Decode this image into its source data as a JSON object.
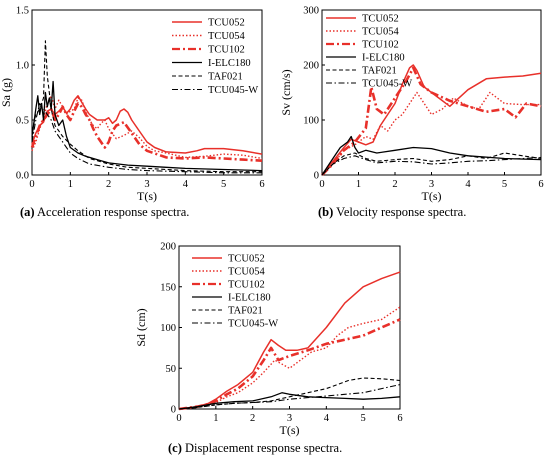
{
  "series_styles": [
    {
      "name": "TCU052",
      "color": "#e8302a",
      "dash": "",
      "width": 1.5
    },
    {
      "name": "TCU054",
      "color": "#e8302a",
      "dash": "1.5,2",
      "width": 1.4
    },
    {
      "name": "TCU102",
      "color": "#e8302a",
      "dash": "8,3,2,3",
      "width": 2.6
    },
    {
      "name": "I-ELC180",
      "color": "#000000",
      "dash": "",
      "width": 1.3
    },
    {
      "name": "TAF021",
      "color": "#000000",
      "dash": "4,2.5",
      "width": 1.1
    },
    {
      "name": "TCU045-W",
      "color": "#000000",
      "dash": "6,2.5,1.5,2.5",
      "width": 1.1
    }
  ],
  "chart_data": [
    {
      "type": "line",
      "ylabel": "Sa (g)",
      "xlabel": "T(s)",
      "xlim": [
        0,
        6
      ],
      "ylim": [
        0,
        1.5
      ],
      "xticks": [
        "0",
        "1",
        "2",
        "3",
        "4",
        "5",
        "6"
      ],
      "yticks": [
        "0.0",
        "0.5",
        "1.0",
        "1.5"
      ],
      "ytick_values": [
        0,
        0.5,
        1.0,
        1.5
      ],
      "caption_label": "(a)",
      "caption_text": " Acceleration response spectra.",
      "series": [
        {
          "name": "TCU052",
          "x": [
            0,
            0.1,
            0.2,
            0.3,
            0.4,
            0.5,
            0.6,
            0.7,
            0.8,
            0.9,
            1.0,
            1.1,
            1.2,
            1.3,
            1.4,
            1.5,
            1.7,
            1.9,
            2.0,
            2.1,
            2.2,
            2.3,
            2.4,
            2.5,
            2.6,
            2.7,
            2.8,
            3.0,
            3.2,
            3.5,
            4.0,
            4.3,
            4.5,
            5.0,
            5.5,
            6.0
          ],
          "y": [
            0.28,
            0.38,
            0.45,
            0.48,
            0.58,
            0.6,
            0.55,
            0.58,
            0.62,
            0.56,
            0.6,
            0.68,
            0.72,
            0.66,
            0.6,
            0.55,
            0.5,
            0.5,
            0.52,
            0.47,
            0.5,
            0.58,
            0.6,
            0.57,
            0.5,
            0.45,
            0.4,
            0.3,
            0.25,
            0.21,
            0.2,
            0.22,
            0.24,
            0.24,
            0.22,
            0.19
          ]
        },
        {
          "name": "TCU054",
          "x": [
            0,
            0.1,
            0.2,
            0.3,
            0.4,
            0.5,
            0.6,
            0.7,
            0.8,
            0.9,
            1.0,
            1.1,
            1.2,
            1.3,
            1.4,
            1.5,
            1.6,
            1.7,
            1.8,
            1.9,
            2.0,
            2.2,
            2.4,
            2.6,
            2.8,
            3.0,
            3.2,
            3.5,
            4.0,
            4.5,
            5.0,
            5.5,
            6.0
          ],
          "y": [
            0.22,
            0.3,
            0.42,
            0.52,
            0.65,
            0.72,
            0.6,
            0.68,
            0.62,
            0.55,
            0.58,
            0.6,
            0.7,
            0.68,
            0.58,
            0.5,
            0.45,
            0.42,
            0.47,
            0.5,
            0.42,
            0.33,
            0.36,
            0.4,
            0.34,
            0.26,
            0.22,
            0.2,
            0.16,
            0.17,
            0.19,
            0.18,
            0.15
          ]
        },
        {
          "name": "TCU102",
          "x": [
            0,
            0.1,
            0.2,
            0.3,
            0.4,
            0.5,
            0.6,
            0.7,
            0.8,
            0.9,
            1.0,
            1.1,
            1.2,
            1.3,
            1.4,
            1.5,
            1.6,
            1.7,
            1.8,
            1.9,
            2.0,
            2.1,
            2.2,
            2.4,
            2.6,
            2.8,
            3.0,
            3.5,
            4.0,
            4.5,
            5.0,
            5.5,
            6.0
          ],
          "y": [
            0.25,
            0.35,
            0.45,
            0.5,
            0.55,
            0.6,
            0.5,
            0.55,
            0.62,
            0.55,
            0.5,
            0.58,
            0.65,
            0.62,
            0.55,
            0.5,
            0.42,
            0.35,
            0.3,
            0.25,
            0.3,
            0.4,
            0.45,
            0.48,
            0.38,
            0.28,
            0.22,
            0.16,
            0.15,
            0.16,
            0.15,
            0.14,
            0.13
          ]
        },
        {
          "name": "I-ELC180",
          "x": [
            0,
            0.1,
            0.15,
            0.2,
            0.25,
            0.3,
            0.35,
            0.4,
            0.45,
            0.5,
            0.55,
            0.6,
            0.7,
            0.8,
            0.9,
            1.0,
            1.2,
            1.4,
            1.6,
            1.8,
            2.0,
            2.5,
            3.0,
            3.5,
            4.0,
            5.0,
            6.0
          ],
          "y": [
            0.35,
            0.6,
            0.72,
            0.55,
            0.65,
            0.5,
            0.75,
            0.62,
            0.7,
            0.6,
            0.85,
            0.55,
            0.45,
            0.5,
            0.35,
            0.25,
            0.2,
            0.17,
            0.15,
            0.13,
            0.11,
            0.09,
            0.08,
            0.07,
            0.06,
            0.05,
            0.04
          ]
        },
        {
          "name": "TAF021",
          "x": [
            0,
            0.1,
            0.2,
            0.3,
            0.35,
            0.4,
            0.45,
            0.5,
            0.6,
            0.8,
            1.0,
            1.2,
            1.5,
            2.0,
            2.5,
            3.0,
            4.0,
            5.0,
            6.0
          ],
          "y": [
            0.4,
            0.55,
            0.6,
            0.7,
            1.22,
            0.9,
            0.75,
            0.6,
            0.45,
            0.35,
            0.28,
            0.22,
            0.15,
            0.1,
            0.07,
            0.06,
            0.04,
            0.03,
            0.03
          ]
        },
        {
          "name": "TCU045-W",
          "x": [
            0,
            0.1,
            0.2,
            0.3,
            0.4,
            0.5,
            0.6,
            0.8,
            1.0,
            1.2,
            1.5,
            2.0,
            2.5,
            3.0,
            4.0,
            5.0,
            6.0
          ],
          "y": [
            0.3,
            0.5,
            0.65,
            0.6,
            0.55,
            0.5,
            0.4,
            0.3,
            0.2,
            0.15,
            0.1,
            0.07,
            0.05,
            0.04,
            0.03,
            0.02,
            0.02
          ]
        }
      ]
    },
    {
      "type": "line",
      "ylabel": "Sv (cm/s)",
      "xlabel": "T(s)",
      "xlim": [
        0,
        6
      ],
      "ylim": [
        0,
        300
      ],
      "xticks": [
        "0",
        "1",
        "2",
        "3",
        "4",
        "5",
        "6"
      ],
      "yticks": [
        "0",
        "100",
        "200",
        "300"
      ],
      "ytick_values": [
        0,
        100,
        200,
        300
      ],
      "caption_label": "(b)",
      "caption_text": " Velocity response spectra.",
      "series": [
        {
          "name": "TCU052",
          "x": [
            0,
            0.3,
            0.6,
            0.8,
            1.0,
            1.2,
            1.4,
            1.6,
            1.8,
            2.0,
            2.2,
            2.4,
            2.5,
            2.6,
            2.8,
            3.0,
            3.2,
            3.5,
            4.0,
            4.5,
            5.0,
            5.5,
            6.0
          ],
          "y": [
            0,
            25,
            50,
            65,
            60,
            55,
            60,
            90,
            110,
            130,
            165,
            195,
            200,
            190,
            160,
            150,
            140,
            125,
            155,
            175,
            178,
            180,
            185
          ]
        },
        {
          "name": "TCU054",
          "x": [
            0,
            0.3,
            0.6,
            0.9,
            1.2,
            1.4,
            1.6,
            1.8,
            2.0,
            2.2,
            2.4,
            2.6,
            2.8,
            3.0,
            3.3,
            3.6,
            4.0,
            4.3,
            4.6,
            5.0,
            5.5,
            6.0
          ],
          "y": [
            0,
            20,
            45,
            55,
            70,
            65,
            90,
            80,
            100,
            110,
            130,
            150,
            130,
            110,
            120,
            140,
            125,
            120,
            150,
            130,
            128,
            128
          ]
        },
        {
          "name": "TCU102",
          "x": [
            0,
            0.3,
            0.6,
            0.9,
            1.2,
            1.35,
            1.5,
            1.7,
            2.0,
            2.3,
            2.5,
            2.7,
            3.0,
            3.5,
            4.0,
            4.5,
            5.0,
            5.3,
            5.6,
            6.0
          ],
          "y": [
            0,
            20,
            45,
            60,
            85,
            160,
            120,
            110,
            140,
            170,
            195,
            165,
            150,
            135,
            125,
            115,
            120,
            105,
            130,
            125
          ]
        },
        {
          "name": "I-ELC180",
          "x": [
            0,
            0.3,
            0.5,
            0.7,
            0.8,
            0.9,
            1.0,
            1.2,
            1.5,
            2.0,
            2.5,
            3.0,
            3.5,
            4.0,
            5.0,
            6.0
          ],
          "y": [
            0,
            30,
            50,
            60,
            70,
            50,
            40,
            45,
            40,
            45,
            50,
            48,
            40,
            35,
            30,
            28
          ]
        },
        {
          "name": "TAF021",
          "x": [
            0,
            0.3,
            0.6,
            0.9,
            1.2,
            1.5,
            2.0,
            2.5,
            3.0,
            3.5,
            4.0,
            4.5,
            5.0,
            5.5,
            6.0
          ],
          "y": [
            0,
            20,
            35,
            40,
            30,
            25,
            28,
            30,
            25,
            28,
            35,
            30,
            40,
            35,
            30
          ]
        },
        {
          "name": "TCU045-W",
          "x": [
            0,
            0.3,
            0.6,
            0.9,
            1.2,
            1.5,
            2.0,
            2.5,
            3.0,
            3.5,
            4.0,
            4.5,
            5.0,
            5.5,
            6.0
          ],
          "y": [
            0,
            20,
            30,
            35,
            28,
            22,
            25,
            24,
            20,
            22,
            25,
            26,
            28,
            30,
            32
          ]
        }
      ]
    },
    {
      "type": "line",
      "ylabel": "Sd (cm)",
      "xlabel": "T(s)",
      "xlim": [
        0,
        6
      ],
      "ylim": [
        0,
        200
      ],
      "xticks": [
        "0",
        "1",
        "2",
        "3",
        "4",
        "5",
        "6"
      ],
      "yticks": [
        "0",
        "50",
        "100",
        "150",
        "200"
      ],
      "ytick_values": [
        0,
        50,
        100,
        150,
        200
      ],
      "caption_label": "(c)",
      "caption_text": " Displacement response spectra.",
      "series": [
        {
          "name": "TCU052",
          "x": [
            0,
            0.5,
            0.8,
            1.0,
            1.3,
            1.6,
            2.0,
            2.3,
            2.5,
            2.7,
            2.9,
            3.2,
            3.5,
            4.0,
            4.5,
            5.0,
            5.5,
            6.0
          ],
          "y": [
            0,
            3,
            7,
            12,
            22,
            30,
            45,
            70,
            85,
            78,
            72,
            72,
            75,
            100,
            130,
            150,
            160,
            168
          ]
        },
        {
          "name": "TCU054",
          "x": [
            0,
            0.5,
            0.8,
            1.0,
            1.3,
            1.6,
            2.0,
            2.3,
            2.6,
            2.8,
            3.0,
            3.3,
            3.6,
            4.0,
            4.3,
            4.6,
            5.0,
            5.5,
            6.0
          ],
          "y": [
            0,
            3,
            6,
            8,
            15,
            20,
            32,
            45,
            60,
            55,
            50,
            60,
            70,
            75,
            90,
            100,
            105,
            110,
            125
          ]
        },
        {
          "name": "TCU102",
          "x": [
            0,
            0.5,
            0.8,
            1.0,
            1.3,
            1.6,
            2.0,
            2.3,
            2.5,
            2.7,
            3.0,
            3.5,
            4.0,
            4.5,
            5.0,
            5.5,
            6.0
          ],
          "y": [
            0,
            3,
            6,
            10,
            18,
            25,
            40,
            60,
            75,
            60,
            65,
            72,
            80,
            85,
            90,
            100,
            110
          ]
        },
        {
          "name": "I-ELC180",
          "x": [
            0,
            0.5,
            1.0,
            1.5,
            2.0,
            2.5,
            2.8,
            3.0,
            3.5,
            4.0,
            4.5,
            5.0,
            5.5,
            6.0
          ],
          "y": [
            0,
            3,
            7,
            9,
            10,
            15,
            20,
            18,
            15,
            14,
            13,
            12,
            13,
            15
          ]
        },
        {
          "name": "TAF021",
          "x": [
            0,
            0.5,
            1.0,
            1.5,
            2.0,
            2.5,
            3.0,
            3.5,
            4.0,
            4.3,
            4.6,
            5.0,
            5.5,
            6.0
          ],
          "y": [
            0,
            2,
            5,
            7,
            8,
            10,
            15,
            20,
            25,
            30,
            35,
            38,
            37,
            35
          ]
        },
        {
          "name": "TCU045-W",
          "x": [
            0,
            0.5,
            1.0,
            1.5,
            2.0,
            2.5,
            3.0,
            3.5,
            4.0,
            4.5,
            5.0,
            5.5,
            6.0
          ],
          "y": [
            0,
            2,
            5,
            7,
            8,
            9,
            12,
            14,
            16,
            18,
            20,
            25,
            30
          ]
        }
      ]
    }
  ]
}
